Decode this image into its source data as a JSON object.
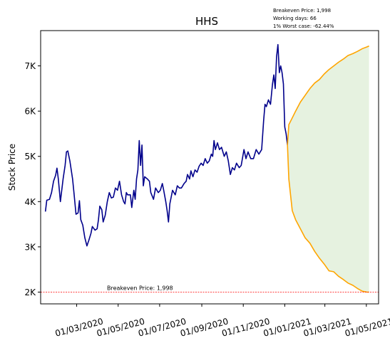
{
  "chart_data": {
    "type": "line",
    "title": "HHS",
    "ylabel": "Stock Price",
    "xlabel": "",
    "info_lines": [
      "Breakeven Price: 1,998",
      "Working days: 66",
      "1% Worst case: -62.44%"
    ],
    "breakeven": {
      "value": 1998,
      "label": "Breakeven Price: 1,998",
      "color": "#ff0000"
    },
    "xlim": [
      "2020-01-08",
      "2021-05-19"
    ],
    "ylim": [
      1740,
      7780
    ],
    "x_ticks": [
      {
        "date": "2020-03-01",
        "label": "01/03/2020"
      },
      {
        "date": "2020-05-01",
        "label": "01/05/2020"
      },
      {
        "date": "2020-07-01",
        "label": "01/07/2020"
      },
      {
        "date": "2020-09-01",
        "label": "01/09/2020"
      },
      {
        "date": "2020-11-01",
        "label": "01/11/2020"
      },
      {
        "date": "2021-01-01",
        "label": "01/01/2021"
      },
      {
        "date": "2021-03-01",
        "label": "01/03/2021"
      },
      {
        "date": "2021-05-01",
        "label": "01/05/2021"
      }
    ],
    "y_ticks": [
      {
        "value": 2000,
        "label": "2K"
      },
      {
        "value": 3000,
        "label": "3K"
      },
      {
        "value": 4000,
        "label": "4K"
      },
      {
        "value": 5000,
        "label": "5K"
      },
      {
        "value": 6000,
        "label": "6K"
      },
      {
        "value": 7000,
        "label": "7K"
      }
    ],
    "series": [
      {
        "role": "historical",
        "color": "#00008b",
        "points": [
          [
            "2020-01-15",
            3780
          ],
          [
            "2020-01-17",
            4030
          ],
          [
            "2020-01-21",
            4050
          ],
          [
            "2020-01-24",
            4200
          ],
          [
            "2020-01-27",
            4450
          ],
          [
            "2020-01-30",
            4580
          ],
          [
            "2020-02-01",
            4740
          ],
          [
            "2020-02-03",
            4500
          ],
          [
            "2020-02-06",
            4000
          ],
          [
            "2020-02-10",
            4500
          ],
          [
            "2020-02-13",
            4800
          ],
          [
            "2020-02-15",
            5100
          ],
          [
            "2020-02-17",
            5120
          ],
          [
            "2020-02-20",
            4900
          ],
          [
            "2020-02-24",
            4500
          ],
          [
            "2020-02-26",
            4200
          ],
          [
            "2020-02-29",
            3720
          ],
          [
            "2020-03-03",
            3750
          ],
          [
            "2020-03-05",
            4020
          ],
          [
            "2020-03-07",
            3600
          ],
          [
            "2020-03-10",
            3480
          ],
          [
            "2020-03-13",
            3200
          ],
          [
            "2020-03-16",
            3020
          ],
          [
            "2020-03-19",
            3150
          ],
          [
            "2020-03-22",
            3300
          ],
          [
            "2020-03-24",
            3450
          ],
          [
            "2020-03-28",
            3370
          ],
          [
            "2020-03-31",
            3400
          ],
          [
            "2020-04-02",
            3600
          ],
          [
            "2020-04-04",
            3900
          ],
          [
            "2020-04-07",
            3820
          ],
          [
            "2020-04-09",
            3550
          ],
          [
            "2020-04-12",
            3700
          ],
          [
            "2020-04-15",
            4000
          ],
          [
            "2020-04-18",
            4200
          ],
          [
            "2020-04-21",
            4080
          ],
          [
            "2020-04-24",
            4100
          ],
          [
            "2020-04-27",
            4300
          ],
          [
            "2020-04-30",
            4250
          ],
          [
            "2020-05-03",
            4450
          ],
          [
            "2020-05-06",
            4150
          ],
          [
            "2020-05-09",
            4000
          ],
          [
            "2020-05-11",
            3950
          ],
          [
            "2020-05-13",
            4200
          ],
          [
            "2020-05-15",
            4150
          ],
          [
            "2020-05-19",
            4150
          ],
          [
            "2020-05-21",
            3870
          ],
          [
            "2020-05-24",
            4250
          ],
          [
            "2020-05-26",
            4050
          ],
          [
            "2020-05-28",
            4500
          ],
          [
            "2020-05-30",
            4700
          ],
          [
            "2020-06-01",
            5350
          ],
          [
            "2020-06-03",
            4800
          ],
          [
            "2020-06-05",
            5250
          ],
          [
            "2020-06-07",
            4350
          ],
          [
            "2020-06-09",
            4550
          ],
          [
            "2020-06-13",
            4500
          ],
          [
            "2020-06-16",
            4450
          ],
          [
            "2020-06-18",
            4200
          ],
          [
            "2020-06-22",
            4050
          ],
          [
            "2020-06-25",
            4300
          ],
          [
            "2020-06-29",
            4200
          ],
          [
            "2020-07-02",
            4250
          ],
          [
            "2020-07-05",
            4400
          ],
          [
            "2020-07-07",
            4250
          ],
          [
            "2020-07-10",
            4000
          ],
          [
            "2020-07-12",
            3800
          ],
          [
            "2020-07-14",
            3550
          ],
          [
            "2020-07-16",
            3950
          ],
          [
            "2020-07-20",
            4250
          ],
          [
            "2020-07-24",
            4150
          ],
          [
            "2020-07-27",
            4350
          ],
          [
            "2020-07-30",
            4300
          ],
          [
            "2020-08-02",
            4300
          ],
          [
            "2020-08-06",
            4400
          ],
          [
            "2020-08-09",
            4450
          ],
          [
            "2020-08-11",
            4600
          ],
          [
            "2020-08-14",
            4500
          ],
          [
            "2020-08-16",
            4680
          ],
          [
            "2020-08-19",
            4550
          ],
          [
            "2020-08-22",
            4700
          ],
          [
            "2020-08-25",
            4650
          ],
          [
            "2020-08-28",
            4780
          ],
          [
            "2020-08-31",
            4850
          ],
          [
            "2020-09-03",
            4800
          ],
          [
            "2020-09-06",
            4950
          ],
          [
            "2020-09-09",
            4850
          ],
          [
            "2020-09-12",
            4900
          ],
          [
            "2020-09-15",
            5050
          ],
          [
            "2020-09-17",
            5000
          ],
          [
            "2020-09-19",
            5350
          ],
          [
            "2020-09-21",
            5150
          ],
          [
            "2020-09-24",
            5300
          ],
          [
            "2020-09-27",
            5150
          ],
          [
            "2020-09-30",
            5200
          ],
          [
            "2020-10-04",
            5000
          ],
          [
            "2020-10-07",
            5100
          ],
          [
            "2020-10-10",
            4900
          ],
          [
            "2020-10-13",
            4600
          ],
          [
            "2020-10-16",
            4750
          ],
          [
            "2020-10-19",
            4700
          ],
          [
            "2020-10-22",
            4850
          ],
          [
            "2020-10-26",
            4750
          ],
          [
            "2020-10-29",
            4800
          ],
          [
            "2020-11-02",
            5150
          ],
          [
            "2020-11-05",
            4950
          ],
          [
            "2020-11-08",
            5100
          ],
          [
            "2020-11-12",
            4950
          ],
          [
            "2020-11-16",
            4950
          ],
          [
            "2020-11-20",
            5150
          ],
          [
            "2020-11-24",
            5050
          ],
          [
            "2020-11-28",
            5150
          ],
          [
            "2020-12-01",
            5800
          ],
          [
            "2020-12-03",
            6150
          ],
          [
            "2020-12-05",
            6100
          ],
          [
            "2020-12-08",
            6250
          ],
          [
            "2020-12-11",
            6150
          ],
          [
            "2020-12-14",
            6600
          ],
          [
            "2020-12-16",
            6800
          ],
          [
            "2020-12-18",
            6500
          ],
          [
            "2020-12-20",
            7200
          ],
          [
            "2020-12-22",
            7470
          ],
          [
            "2020-12-24",
            6850
          ],
          [
            "2020-12-26",
            7000
          ],
          [
            "2020-12-28",
            6850
          ],
          [
            "2020-12-30",
            6600
          ],
          [
            "2021-01-01",
            5650
          ],
          [
            "2021-01-03",
            5500
          ],
          [
            "2021-01-05",
            5250
          ]
        ]
      },
      {
        "role": "upper-projection",
        "color": "#ffa500",
        "points": [
          [
            "2021-01-05",
            5250
          ],
          [
            "2021-01-07",
            5700
          ],
          [
            "2021-01-12",
            5850
          ],
          [
            "2021-01-17",
            6000
          ],
          [
            "2021-01-24",
            6200
          ],
          [
            "2021-01-31",
            6350
          ],
          [
            "2021-02-07",
            6500
          ],
          [
            "2021-02-14",
            6620
          ],
          [
            "2021-02-21",
            6700
          ],
          [
            "2021-02-28",
            6820
          ],
          [
            "2021-03-07",
            6920
          ],
          [
            "2021-03-14",
            7000
          ],
          [
            "2021-03-21",
            7080
          ],
          [
            "2021-03-28",
            7150
          ],
          [
            "2021-04-04",
            7230
          ],
          [
            "2021-04-11",
            7270
          ],
          [
            "2021-04-18",
            7320
          ],
          [
            "2021-04-25",
            7380
          ],
          [
            "2021-05-02",
            7420
          ],
          [
            "2021-05-05",
            7440
          ]
        ]
      },
      {
        "role": "lower-projection",
        "color": "#ffa500",
        "points": [
          [
            "2021-01-05",
            5250
          ],
          [
            "2021-01-07",
            4500
          ],
          [
            "2021-01-12",
            3800
          ],
          [
            "2021-01-17",
            3600
          ],
          [
            "2021-01-24",
            3400
          ],
          [
            "2021-01-31",
            3200
          ],
          [
            "2021-02-07",
            3080
          ],
          [
            "2021-02-14",
            2900
          ],
          [
            "2021-02-21",
            2750
          ],
          [
            "2021-02-28",
            2620
          ],
          [
            "2021-03-07",
            2470
          ],
          [
            "2021-03-14",
            2450
          ],
          [
            "2021-03-21",
            2350
          ],
          [
            "2021-03-28",
            2280
          ],
          [
            "2021-04-04",
            2200
          ],
          [
            "2021-04-11",
            2150
          ],
          [
            "2021-04-18",
            2080
          ],
          [
            "2021-04-25",
            2020
          ],
          [
            "2021-05-02",
            2000
          ],
          [
            "2021-05-05",
            2000
          ]
        ]
      }
    ],
    "band": {
      "between": [
        "upper-projection",
        "lower-projection"
      ],
      "color": "#e6f2e0"
    },
    "grid": false,
    "legend": "none"
  }
}
